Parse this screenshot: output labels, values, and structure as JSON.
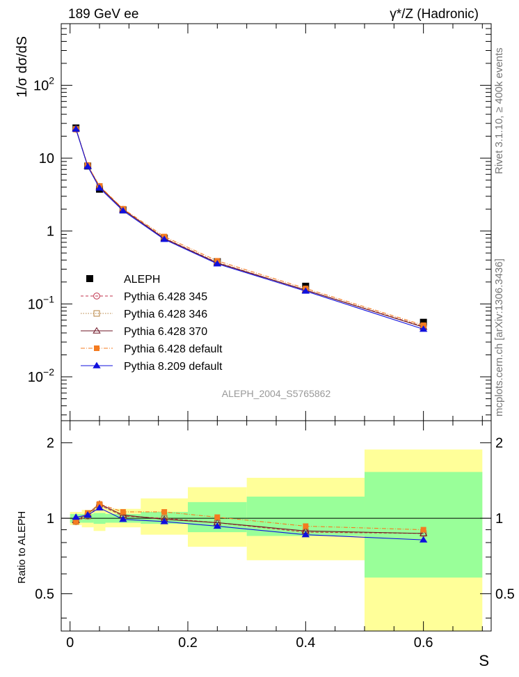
{
  "header": {
    "left_label": "189 GeV ee",
    "right_label": "γ*/Z (Hadronic)"
  },
  "side_labels": {
    "rivet": "Rivet 3.1.10, ≥ 400k events",
    "mcplots": "mcplots.cern.ch [arXiv:1306.3436]"
  },
  "chart_data": [
    {
      "type": "line",
      "role": "main",
      "title": "189 GeV ee",
      "subtitle": "γ*/Z (Hadronic)",
      "analysis_label": "ALEPH_2004_S5765862",
      "ylabel": "1/σ dσ/dS",
      "yscale": "log",
      "ylim": [
        0.0025,
        700
      ],
      "xlim": [
        -0.015,
        0.715
      ],
      "y_ticks": [
        {
          "value": 0.01,
          "base": "10",
          "exp": "−2"
        },
        {
          "value": 0.1,
          "base": "10",
          "exp": "−1"
        },
        {
          "value": 1,
          "base": "1",
          "exp": ""
        },
        {
          "value": 10,
          "base": "10",
          "exp": ""
        },
        {
          "value": 100,
          "base": "10",
          "exp": "2"
        }
      ],
      "x": [
        0.01,
        0.03,
        0.05,
        0.09,
        0.16,
        0.25,
        0.4,
        0.6
      ],
      "data": {
        "name": "ALEPH",
        "values": [
          26.0,
          7.8,
          3.75,
          1.95,
          0.8,
          0.38,
          0.175,
          0.056
        ]
      },
      "series": [
        {
          "name": "Pythia 6.428 345",
          "color": "#c0304b",
          "dash": "4,3",
          "marker": "circle-open",
          "values": [
            25.0,
            7.9,
            4.1,
            1.98,
            0.8,
            0.37,
            0.155,
            0.049
          ]
        },
        {
          "name": "Pythia 6.428 346",
          "color": "#b5813e",
          "dash": "1.5,2",
          "marker": "square-open",
          "values": [
            25.0,
            7.9,
            4.1,
            1.98,
            0.8,
            0.37,
            0.155,
            0.049
          ]
        },
        {
          "name": "Pythia 6.428 370",
          "color": "#6d1424",
          "dash": "",
          "marker": "triangle-open",
          "values": [
            25.5,
            7.8,
            4.05,
            1.97,
            0.79,
            0.365,
            0.155,
            0.048
          ]
        },
        {
          "name": "Pythia 6.428 default",
          "color": "#f47b20",
          "dash": "6,2,1,2",
          "marker": "square-filled",
          "values": [
            24.8,
            8.0,
            4.15,
            2.02,
            0.84,
            0.39,
            0.163,
            0.051
          ]
        },
        {
          "name": "Pythia 8.209 default",
          "color": "#1010dd",
          "dash": "",
          "marker": "triangle-filled",
          "values": [
            25.0,
            7.7,
            3.9,
            1.9,
            0.77,
            0.355,
            0.15,
            0.045
          ]
        }
      ]
    },
    {
      "type": "line",
      "role": "ratio",
      "ylabel": "Ratio to ALEPH",
      "xlabel": "S",
      "yscale": "log",
      "ylim": [
        0.355,
        2.45
      ],
      "xlim": [
        -0.015,
        0.715
      ],
      "y_ticks": [
        0.5,
        1,
        2
      ],
      "y_tick_labels": [
        "0.5",
        "1",
        "2"
      ],
      "x_ticks": [
        0,
        0.2,
        0.4,
        0.6
      ],
      "x_tick_labels": [
        "0",
        "0.2",
        "0.4",
        "0.6"
      ],
      "bands": [
        {
          "x0": 0.0,
          "x1": 0.02,
          "green": [
            0.96,
            1.04
          ],
          "yellow": [
            0.94,
            1.06
          ]
        },
        {
          "x0": 0.02,
          "x1": 0.04,
          "green": [
            0.96,
            1.04
          ],
          "yellow": [
            0.92,
            1.08
          ]
        },
        {
          "x0": 0.04,
          "x1": 0.06,
          "green": [
            0.95,
            1.05
          ],
          "yellow": [
            0.89,
            1.11
          ]
        },
        {
          "x0": 0.06,
          "x1": 0.12,
          "green": [
            0.96,
            1.04
          ],
          "yellow": [
            0.92,
            1.09
          ]
        },
        {
          "x0": 0.12,
          "x1": 0.2,
          "green": [
            0.95,
            1.06
          ],
          "yellow": [
            0.86,
            1.2
          ]
        },
        {
          "x0": 0.2,
          "x1": 0.3,
          "green": [
            0.88,
            1.16
          ],
          "yellow": [
            0.77,
            1.33
          ]
        },
        {
          "x0": 0.3,
          "x1": 0.5,
          "green": [
            0.85,
            1.22
          ],
          "yellow": [
            0.68,
            1.45
          ]
        },
        {
          "x0": 0.5,
          "x1": 0.7,
          "green": [
            0.58,
            1.53
          ],
          "yellow": [
            0.355,
            1.88
          ]
        }
      ],
      "x": [
        0.01,
        0.03,
        0.05,
        0.09,
        0.16,
        0.25,
        0.4,
        0.6
      ],
      "series": [
        {
          "name": "Pythia 6.428 345",
          "values": [
            0.97,
            1.02,
            1.13,
            1.02,
            1.0,
            0.96,
            0.88,
            0.87
          ]
        },
        {
          "name": "Pythia 6.428 346",
          "values": [
            0.97,
            1.02,
            1.13,
            1.02,
            1.0,
            0.96,
            0.88,
            0.87
          ]
        },
        {
          "name": "Pythia 6.428 370",
          "values": [
            0.98,
            1.04,
            1.14,
            1.03,
            0.99,
            0.96,
            0.89,
            0.87
          ]
        },
        {
          "name": "Pythia 6.428 default",
          "values": [
            0.97,
            1.05,
            1.14,
            1.06,
            1.06,
            1.01,
            0.93,
            0.9
          ]
        },
        {
          "name": "Pythia 8.209 default",
          "values": [
            1.01,
            1.03,
            1.1,
            0.99,
            0.97,
            0.93,
            0.86,
            0.82
          ]
        }
      ]
    }
  ]
}
